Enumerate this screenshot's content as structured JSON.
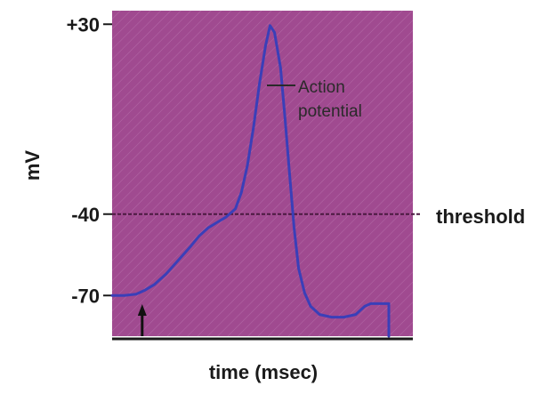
{
  "chart_data": {
    "type": "line",
    "xlabel": "time (msec)",
    "ylabel": "mV",
    "ylim": [
      -85,
      35
    ],
    "yticks": [
      {
        "value": 30,
        "label": "+30"
      },
      {
        "value": -40,
        "label": "-40"
      },
      {
        "value": -70,
        "label": "-70"
      }
    ],
    "threshold": {
      "value": -40,
      "label": "threshold"
    },
    "annotation": {
      "line1": "Action",
      "line2": "potential"
    },
    "series": [
      {
        "values": [
          [
            0,
            -70
          ],
          [
            4,
            -70
          ],
          [
            8,
            -69.5
          ],
          [
            11,
            -68
          ],
          [
            14,
            -66
          ],
          [
            18,
            -62
          ],
          [
            22,
            -57
          ],
          [
            26,
            -52
          ],
          [
            29,
            -48
          ],
          [
            32,
            -45
          ],
          [
            35,
            -43
          ],
          [
            38,
            -41
          ],
          [
            41,
            -38
          ],
          [
            43,
            -32
          ],
          [
            45,
            -22
          ],
          [
            47,
            -8
          ],
          [
            49,
            8
          ],
          [
            51,
            22
          ],
          [
            52.5,
            29.5
          ],
          [
            54,
            27
          ],
          [
            56,
            14
          ],
          [
            57.5,
            -5
          ],
          [
            59,
            -25
          ],
          [
            60.5,
            -45
          ],
          [
            62,
            -60
          ],
          [
            64,
            -69
          ],
          [
            66,
            -74
          ],
          [
            69,
            -77
          ],
          [
            73,
            -78
          ],
          [
            77,
            -78
          ],
          [
            81,
            -77
          ],
          [
            84,
            -74
          ],
          [
            86,
            -73
          ],
          [
            92,
            -73
          ],
          [
            92,
            -85
          ]
        ]
      }
    ],
    "stimulus_time": 10,
    "colors": {
      "background": "#a04a90",
      "trace": "#3a3fb8",
      "threshold_line": "#4a1a40",
      "axis": "#1a1a1a",
      "stimulus_arrow": "#111111"
    }
  }
}
